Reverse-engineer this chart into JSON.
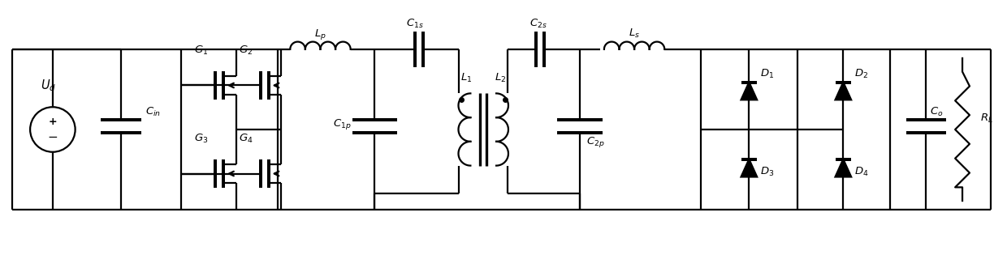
{
  "bg_color": "#ffffff",
  "line_color": "#000000",
  "line_width": 1.6,
  "fig_width": 12.4,
  "fig_height": 3.2,
  "dpi": 100,
  "font_size": 8.5
}
